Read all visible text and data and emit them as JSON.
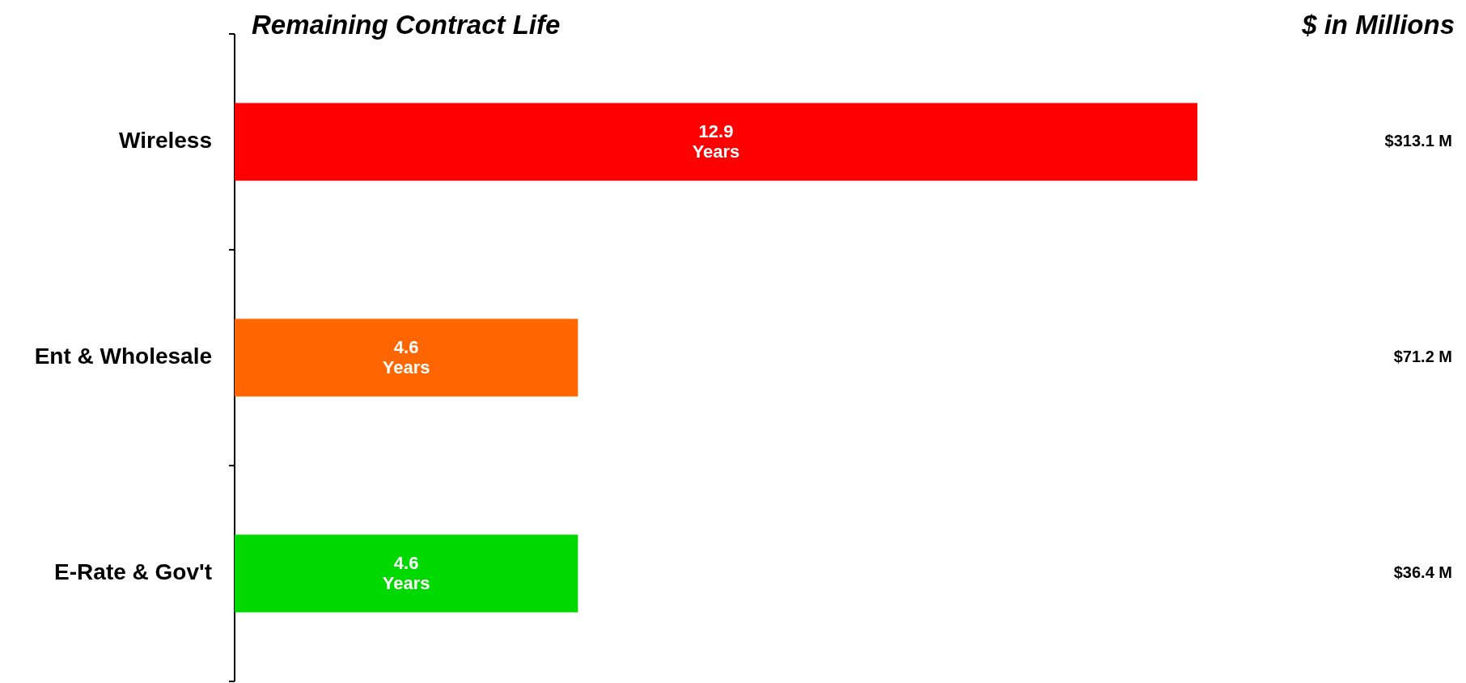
{
  "chart_data": {
    "type": "bar",
    "orientation": "horizontal",
    "title": "Remaining Contract Life",
    "y2label": "$ in Millions",
    "categories": [
      "Wireless",
      "Ent & Wholesale",
      "E-Rate & Gov't"
    ],
    "values": [
      12.9,
      4.6,
      4.6
    ],
    "colors": [
      "#ff0000",
      "#ff6600",
      "#00d900"
    ],
    "value_labels": [
      "12.9 Years",
      "4.6 Years",
      "4.6 Years"
    ],
    "annotations": [
      "$313.1 M",
      "$71.2 M",
      "$36.4 M"
    ]
  }
}
